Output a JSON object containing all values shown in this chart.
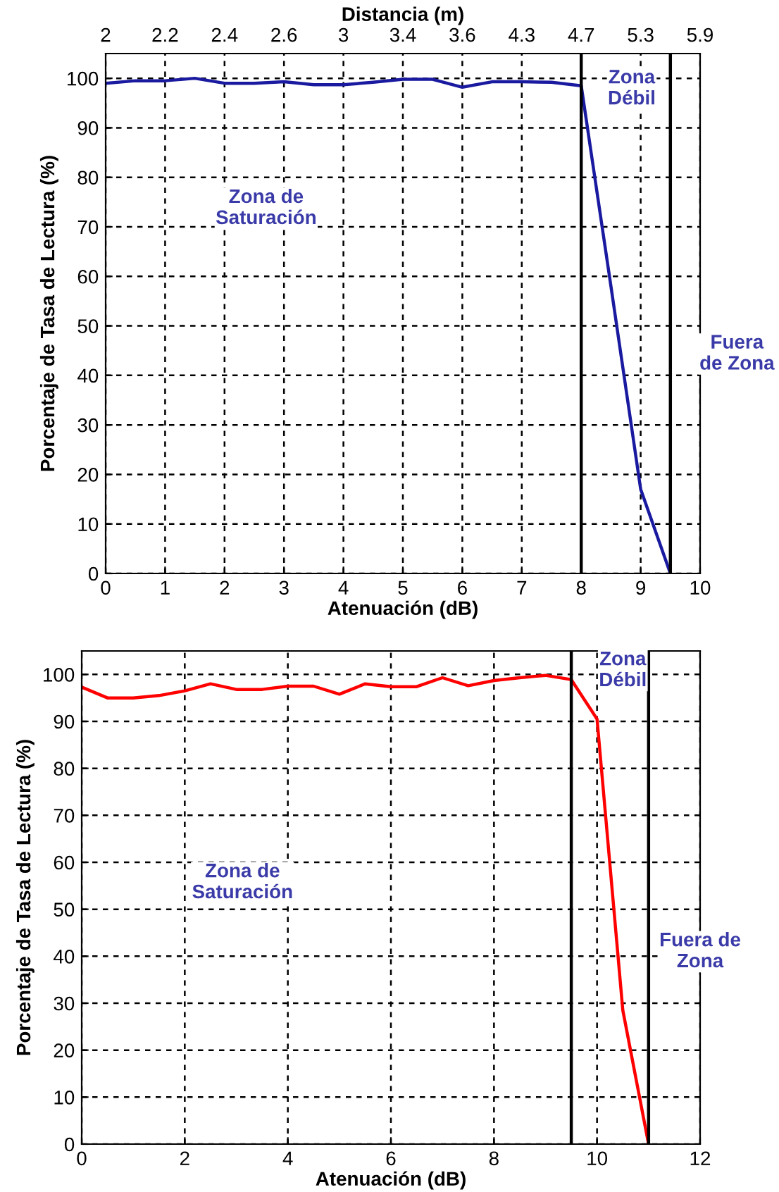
{
  "chart_data": [
    {
      "type": "line",
      "xlabel": "Atenuación (dB)",
      "ylabel": "Porcentaje de Tasa de Lectura (%)",
      "x2label": "Distancia (m)",
      "x": [
        0,
        0.5,
        1,
        1.5,
        2,
        2.5,
        3,
        3.5,
        4,
        4.5,
        5,
        5.5,
        6,
        6.5,
        7,
        7.5,
        8,
        8.5,
        9,
        9.5
      ],
      "series": [
        {
          "color": "#1a1aa0",
          "values": [
            99,
            99.5,
            99.5,
            100,
            99,
            99,
            99.3,
            98.7,
            98.7,
            99.2,
            99.8,
            99.8,
            98.2,
            99.3,
            99.3,
            99.2,
            98.5,
            58,
            17,
            0
          ]
        }
      ],
      "xlim": [
        0,
        10
      ],
      "xticks": [
        0,
        1,
        2,
        3,
        4,
        5,
        6,
        7,
        8,
        9,
        10
      ],
      "ylim": [
        0,
        105
      ],
      "yticks": [
        0,
        10,
        20,
        30,
        40,
        50,
        60,
        70,
        80,
        90,
        100
      ],
      "ref_lines": [
        {
          "axis": "x",
          "value": 8,
          "color": "#000000"
        },
        {
          "axis": "x",
          "value": 9.5,
          "color": "#000000"
        }
      ],
      "annotations": [
        "Zona de\nSaturación",
        "Zona\nDébil",
        "Fuera\nde Zona",
        "2",
        "2.2",
        "2.4",
        "2.6",
        "3",
        "3.4",
        "3.6",
        "4.3",
        "4.7",
        "5.3",
        "5.9"
      ],
      "grid": true,
      "line_style": "solid"
    },
    {
      "type": "line",
      "xlabel": "Atenuación (dB)",
      "ylabel": "Porcentaje de Tasa de Lectura (%)",
      "x": [
        0,
        0.5,
        1,
        1.5,
        2,
        2.5,
        3,
        3.5,
        4,
        4.5,
        5,
        5.5,
        6,
        6.5,
        7,
        7.5,
        8,
        8.5,
        9,
        9.5,
        10,
        10.5,
        11
      ],
      "series": [
        {
          "color": "#ff0000",
          "values": [
            97.3,
            95,
            95,
            95.5,
            96.5,
            98,
            96.8,
            96.8,
            97.5,
            97.5,
            95.8,
            98,
            97.4,
            97.4,
            99.3,
            97.6,
            98.7,
            99.3,
            99.8,
            98.9,
            90.5,
            28.5,
            0
          ]
        }
      ],
      "xlim": [
        0,
        12
      ],
      "xticks": [
        0,
        2,
        4,
        6,
        8,
        10,
        12
      ],
      "ylim": [
        0,
        105
      ],
      "yticks": [
        0,
        10,
        20,
        30,
        40,
        50,
        60,
        70,
        80,
        90,
        100
      ],
      "ref_lines": [
        {
          "axis": "x",
          "value": 9.5,
          "color": "#000000"
        },
        {
          "axis": "x",
          "value": 11,
          "color": "#000000"
        }
      ],
      "annotations": [
        "Zona de\nSaturación",
        "Zona\nDébil",
        "Fuera de\nZona"
      ],
      "grid": true,
      "line_style": "solid"
    }
  ]
}
